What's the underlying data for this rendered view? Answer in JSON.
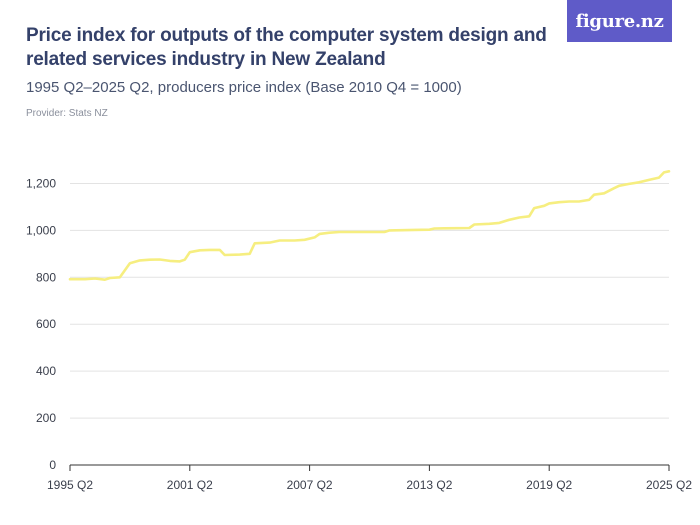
{
  "header": {
    "title": "Price index for outputs of the computer system design and related services industry in New Zealand",
    "subtitle": "1995 Q2–2025 Q2, producers price index (Base 2010 Q4 = 1000)",
    "provider": "Provider: Stats NZ",
    "logo_text": "figure.nz"
  },
  "colors": {
    "line": "#f6ee80",
    "grid": "#e3e3e3",
    "axis": "#333333",
    "logo_bg": "#5f5bc8"
  },
  "chart_data": {
    "type": "line",
    "title": "Price index for outputs of the computer system design and related services industry in New Zealand",
    "subtitle": "1995 Q2–2025 Q2, producers price index (Base 2010 Q4 = 1000)",
    "xlabel": "",
    "ylabel": "",
    "ylim": [
      0,
      1300
    ],
    "xlim": [
      1995.25,
      2025.25
    ],
    "grid": true,
    "legend": "none",
    "y_ticks": [
      0,
      200,
      400,
      600,
      800,
      1000,
      1200
    ],
    "y_tick_labels": [
      "0",
      "200",
      "400",
      "600",
      "800",
      "1,000",
      "1,200"
    ],
    "x_ticks": [
      1995.25,
      2001.25,
      2007.25,
      2013.25,
      2019.25,
      2025.25
    ],
    "x_tick_labels": [
      "1995 Q2",
      "2001 Q2",
      "2007 Q2",
      "2013 Q2",
      "2019 Q2",
      "2025 Q2"
    ],
    "series": [
      {
        "points": [
          [
            1995.25,
            792
          ],
          [
            1996.0,
            792
          ],
          [
            1996.5,
            795
          ],
          [
            1997.0,
            790
          ],
          [
            1997.25,
            797
          ],
          [
            1997.75,
            800
          ],
          [
            1998.25,
            860
          ],
          [
            1998.75,
            872
          ],
          [
            1999.25,
            875
          ],
          [
            1999.75,
            876
          ],
          [
            2000.25,
            870
          ],
          [
            2000.75,
            868
          ],
          [
            2001.0,
            875
          ],
          [
            2001.25,
            907
          ],
          [
            2001.75,
            915
          ],
          [
            2002.25,
            917
          ],
          [
            2002.75,
            917
          ],
          [
            2003.0,
            895
          ],
          [
            2003.75,
            897
          ],
          [
            2004.25,
            900
          ],
          [
            2004.5,
            945
          ],
          [
            2005.25,
            948
          ],
          [
            2005.75,
            957
          ],
          [
            2006.5,
            957
          ],
          [
            2007.0,
            960
          ],
          [
            2007.5,
            970
          ],
          [
            2007.75,
            985
          ],
          [
            2008.25,
            990
          ],
          [
            2008.75,
            993
          ],
          [
            2010.0,
            993
          ],
          [
            2011.0,
            993
          ],
          [
            2011.25,
            1000
          ],
          [
            2012.5,
            1002
          ],
          [
            2013.25,
            1003
          ],
          [
            2013.5,
            1008
          ],
          [
            2014.0,
            1009
          ],
          [
            2015.25,
            1010
          ],
          [
            2015.5,
            1025
          ],
          [
            2016.25,
            1028
          ],
          [
            2016.75,
            1032
          ],
          [
            2017.25,
            1045
          ],
          [
            2017.75,
            1055
          ],
          [
            2018.25,
            1060
          ],
          [
            2018.5,
            1095
          ],
          [
            2019.0,
            1105
          ],
          [
            2019.25,
            1115
          ],
          [
            2019.75,
            1120
          ],
          [
            2020.25,
            1123
          ],
          [
            2020.75,
            1123
          ],
          [
            2021.25,
            1130
          ],
          [
            2021.5,
            1152
          ],
          [
            2022.0,
            1158
          ],
          [
            2022.5,
            1180
          ],
          [
            2022.75,
            1190
          ],
          [
            2023.25,
            1198
          ],
          [
            2023.75,
            1205
          ],
          [
            2024.25,
            1215
          ],
          [
            2024.75,
            1225
          ],
          [
            2025.0,
            1247
          ],
          [
            2025.25,
            1252
          ]
        ]
      }
    ]
  }
}
